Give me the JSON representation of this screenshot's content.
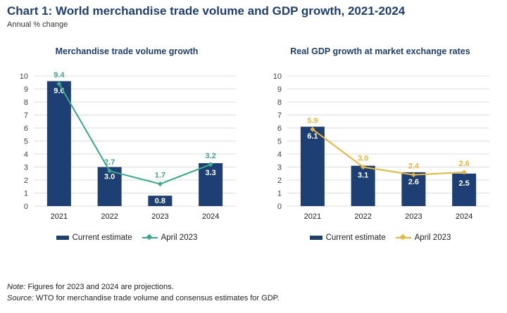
{
  "header": {
    "title": "Chart 1: World merchandise trade volume and GDP growth, 2021-2024",
    "subtitle": "Annual % change"
  },
  "colors": {
    "bar": "#1e3f73",
    "trade_line": "#3aa88b",
    "gdp_line": "#e8b53b",
    "grid": "#dcdcdc"
  },
  "chart_data": [
    {
      "type": "bar",
      "title": "Merchandise trade volume growth",
      "categories": [
        "2021",
        "2022",
        "2023",
        "2024"
      ],
      "ylim": [
        0,
        10
      ],
      "yticks": [
        "0",
        "1",
        "2",
        "3",
        "4",
        "5",
        "6",
        "7",
        "8",
        "9",
        "10"
      ],
      "grid": true,
      "legend_position": "bottom",
      "line_color_key": "trade_line",
      "series": [
        {
          "name": "Current estimate",
          "kind": "bar",
          "values": [
            9.6,
            3.0,
            0.8,
            3.3
          ],
          "labels": [
            "9.6",
            "3.0",
            "0.8",
            "3.3"
          ]
        },
        {
          "name": "April 2023",
          "kind": "line",
          "values": [
            9.4,
            2.7,
            1.7,
            3.2
          ],
          "labels": [
            "9.4",
            "2.7",
            "1.7",
            "3.2"
          ]
        }
      ]
    },
    {
      "type": "bar",
      "title": "Real GDP growth at market exchange rates",
      "categories": [
        "2021",
        "2022",
        "2023",
        "2024"
      ],
      "ylim": [
        0,
        10
      ],
      "yticks": [
        "0",
        "1",
        "2",
        "3",
        "4",
        "5",
        "6",
        "7",
        "8",
        "9",
        "10"
      ],
      "grid": true,
      "legend_position": "bottom",
      "line_color_key": "gdp_line",
      "series": [
        {
          "name": "Current estimate",
          "kind": "bar",
          "values": [
            6.1,
            3.1,
            2.6,
            2.5
          ],
          "labels": [
            "6.1",
            "3.1",
            "2.6",
            "2.5"
          ]
        },
        {
          "name": "April 2023",
          "kind": "line",
          "values": [
            5.9,
            3.0,
            2.4,
            2.6
          ],
          "labels": [
            "5.9",
            "3.0",
            "2.4",
            "2.6"
          ]
        }
      ]
    }
  ],
  "notes": {
    "note_label": "Note:",
    "note_text": " Figures for 2023 and 2024 are projections.",
    "source_label": "Source:",
    "source_text": " WTO for merchandise trade volume and consensus estimates for GDP."
  }
}
